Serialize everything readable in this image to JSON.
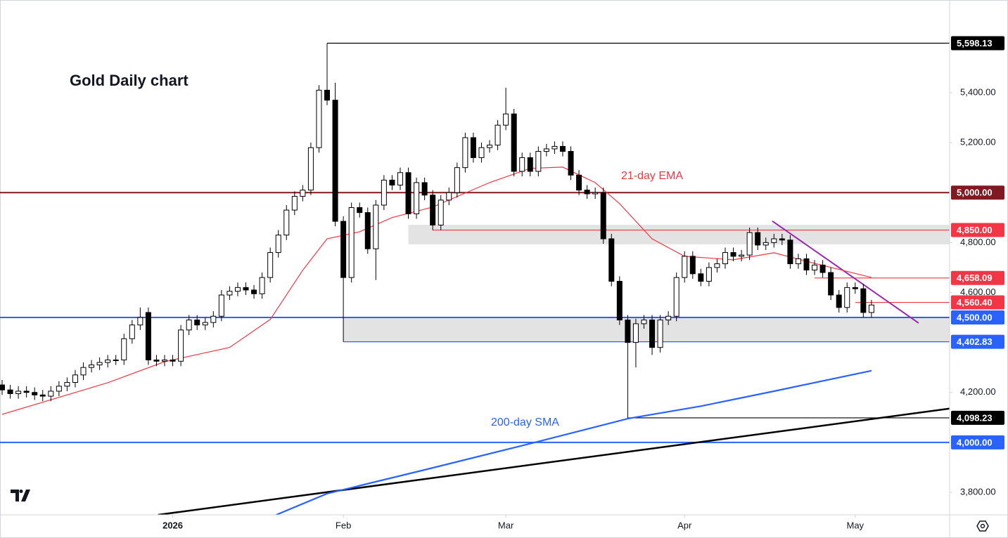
{
  "chart_data": {
    "type": "candlestick",
    "title": "Gold Daily chart",
    "xlim": [
      -0.26,
      116.62
    ],
    "ylim": [
      3710,
      5771
    ],
    "xticks": [
      {
        "value": 21,
        "label": "2026"
      },
      {
        "value": 42,
        "label": "Feb"
      },
      {
        "value": 62,
        "label": "Mar"
      },
      {
        "value": 84,
        "label": "Apr"
      },
      {
        "value": 105,
        "label": "May"
      }
    ],
    "yticks": [
      {
        "value": 3800,
        "label": "3,800.00"
      },
      {
        "value": 4200,
        "label": "4,200.00"
      },
      {
        "value": 4600,
        "label": "4,600.00"
      },
      {
        "value": 4800,
        "label": "4,800.00"
      },
      {
        "value": 5200,
        "label": "5,200.00"
      },
      {
        "value": 5400,
        "label": "5,400.00"
      }
    ],
    "up_color": "#ffffff",
    "down_color": "#000000",
    "x": [
      0,
      1,
      2,
      3,
      4,
      5,
      6,
      7,
      8,
      9,
      10,
      11,
      12,
      13,
      14,
      15,
      16,
      17,
      18,
      19,
      20,
      21,
      22,
      23,
      24,
      25,
      26,
      27,
      28,
      29,
      30,
      31,
      32,
      33,
      34,
      35,
      36,
      37,
      38,
      39,
      40,
      41,
      42,
      43,
      44,
      45,
      46,
      47,
      48,
      49,
      50,
      51,
      52,
      53,
      54,
      55,
      56,
      57,
      58,
      59,
      60,
      61,
      62,
      63,
      64,
      65,
      66,
      67,
      68,
      69,
      70,
      71,
      72,
      73,
      74,
      75,
      76,
      77,
      78,
      79,
      80,
      81,
      82,
      83,
      84,
      85,
      86,
      87,
      88,
      89,
      90,
      91,
      92,
      93,
      94,
      95,
      96,
      97,
      98,
      99,
      100,
      101,
      102,
      103,
      104,
      105,
      106,
      107
    ],
    "open": [
      4230,
      4210,
      4195,
      4205,
      4200,
      4190,
      4185,
      4205,
      4225,
      4240,
      4270,
      4300,
      4310,
      4320,
      4330,
      4330,
      4415,
      4470,
      4520,
      4330,
      4325,
      4330,
      4325,
      4450,
      4490,
      4470,
      4480,
      4505,
      4590,
      4605,
      4620,
      4610,
      4595,
      4660,
      4760,
      4830,
      4930,
      4985,
      5010,
      5180,
      5410,
      5370,
      4885,
      4660,
      4940,
      4920,
      4775,
      4950,
      5050,
      5030,
      5080,
      4915,
      5040,
      4990,
      4870,
      4970,
      5000,
      5100,
      5220,
      5140,
      5180,
      5190,
      5270,
      5315,
      5085,
      5140,
      5085,
      5165,
      5175,
      5185,
      5165,
      5070,
      5010,
      4995,
      5000,
      4815,
      4645,
      4490,
      4400,
      4475,
      4490,
      4380,
      4490,
      4505,
      4660,
      4745,
      4675,
      4645,
      4700,
      4715,
      4760,
      4745,
      4750,
      4840,
      4790,
      4800,
      4815,
      4810,
      4715,
      4735,
      4690,
      4710,
      4680,
      4590,
      4540,
      4620,
      4615,
      4520
    ],
    "high": [
      4250,
      4230,
      4225,
      4225,
      4220,
      4210,
      4225,
      4245,
      4260,
      4290,
      4320,
      4330,
      4340,
      4350,
      4350,
      4435,
      4490,
      4540,
      4540,
      4350,
      4350,
      4350,
      4470,
      4510,
      4510,
      4500,
      4525,
      4610,
      4625,
      4640,
      4640,
      4630,
      4680,
      4780,
      4850,
      4950,
      5005,
      5030,
      5200,
      5430,
      5598.13,
      5440,
      4905,
      4960,
      4960,
      4940,
      4970,
      5070,
      5070,
      5100,
      5100,
      5060,
      5060,
      5010,
      4990,
      5020,
      5120,
      5240,
      5240,
      5200,
      5210,
      5290,
      5420,
      5335,
      5160,
      5160,
      5185,
      5195,
      5205,
      5205,
      5185,
      5090,
      5030,
      5020,
      5020,
      4835,
      4665,
      4510,
      4495,
      4510,
      4510,
      4510,
      4525,
      4680,
      4765,
      4765,
      4695,
      4720,
      4735,
      4780,
      4780,
      4770,
      4860,
      4860,
      4820,
      4835,
      4835,
      4830,
      4755,
      4755,
      4730,
      4730,
      4700,
      4610,
      4640,
      4640,
      4635,
      4570
    ],
    "low": [
      4190,
      4175,
      4175,
      4180,
      4170,
      4165,
      4165,
      4185,
      4205,
      4220,
      4250,
      4280,
      4290,
      4300,
      4310,
      4310,
      4395,
      4450,
      4310,
      4305,
      4305,
      4305,
      4305,
      4430,
      4450,
      4450,
      4460,
      4485,
      4570,
      4585,
      4590,
      4575,
      4575,
      4640,
      4740,
      4810,
      4910,
      4965,
      4990,
      5160,
      5350,
      4865,
      4402.83,
      4640,
      4900,
      4755,
      4650,
      4930,
      5010,
      5010,
      4895,
      4895,
      4970,
      4850,
      4850,
      4950,
      4980,
      5080,
      5120,
      5120,
      5160,
      5170,
      5250,
      5065,
      5065,
      5065,
      5065,
      5145,
      5155,
      5145,
      5050,
      4990,
      4975,
      4975,
      4795,
      4625,
      4470,
      4098.23,
      4300,
      4455,
      4350,
      4360,
      4470,
      4485,
      4640,
      4655,
      4625,
      4625,
      4680,
      4695,
      4725,
      4725,
      4730,
      4770,
      4770,
      4780,
      4790,
      4695,
      4695,
      4670,
      4670,
      4660,
      4570,
      4520,
      4520,
      4595,
      4500,
      4500
    ],
    "close": [
      4210,
      4195,
      4205,
      4200,
      4190,
      4185,
      4205,
      4225,
      4240,
      4270,
      4300,
      4310,
      4320,
      4330,
      4330,
      4415,
      4470,
      4500,
      4330,
      4325,
      4330,
      4325,
      4450,
      4490,
      4470,
      4480,
      4505,
      4590,
      4605,
      4620,
      4610,
      4595,
      4660,
      4760,
      4830,
      4930,
      4985,
      5010,
      5180,
      5410,
      5370,
      4885,
      4660,
      4940,
      4920,
      4775,
      4950,
      5050,
      5030,
      5080,
      4915,
      5040,
      4990,
      4870,
      4970,
      5000,
      5100,
      5220,
      5140,
      5180,
      5190,
      5270,
      5315,
      5085,
      5140,
      5085,
      5165,
      5175,
      5185,
      5165,
      5070,
      5010,
      4995,
      5000,
      4815,
      4645,
      4490,
      4400,
      4475,
      4490,
      4380,
      4490,
      4505,
      4660,
      4745,
      4675,
      4645,
      4700,
      4715,
      4760,
      4745,
      4750,
      4840,
      4790,
      4800,
      4815,
      4810,
      4715,
      4735,
      4690,
      4710,
      4680,
      4590,
      4540,
      4620,
      4615,
      4520,
      4550
    ],
    "series": [
      {
        "name": "21-day EMA",
        "color": "#f23645",
        "x": [
          0,
          13,
          20,
          28,
          33,
          37,
          40,
          44,
          48,
          53,
          60,
          65,
          69,
          73,
          76,
          80,
          84,
          90,
          95,
          100,
          107
        ],
        "values": [
          4112,
          4239,
          4323,
          4380,
          4492,
          4689,
          4815,
          4843,
          4900,
          4942,
          5040,
          5097,
          5102,
          5040,
          4956,
          4815,
          4745,
          4731,
          4759,
          4717,
          4660
        ]
      },
      {
        "name": "200-day SMA",
        "color": "#2962ff",
        "x": [
          33,
          40,
          52,
          65,
          77,
          86,
          95,
          107
        ],
        "values": [
          3700,
          3795,
          3890,
          3995,
          4095,
          4145,
          4205,
          4287
        ]
      }
    ],
    "trendlines": [
      {
        "color": "#000000",
        "x": [
          19.2,
          116.6
        ],
        "values": [
          3710,
          4135
        ]
      },
      {
        "color": "#9c27b0",
        "x": [
          94.8,
          112.8
        ],
        "values": [
          4886,
          4478
        ]
      }
    ],
    "zones": [
      {
        "color": "#dcdcdc",
        "start": 50,
        "low": 4793,
        "high": 4871
      },
      {
        "color": "#dcdcdc",
        "start": 42,
        "low": 4402.83,
        "high": 4500
      }
    ],
    "levels": [
      {
        "value": 5598.13,
        "label": "5,598.13",
        "color": "#000000",
        "start": 40
      },
      {
        "value": 5000,
        "label": "5,000.00",
        "color": "#801922"
      },
      {
        "value": 4850,
        "label": "4,850.00",
        "color": "#f23645",
        "start": 53
      },
      {
        "value": 4658.09,
        "label": "4,658.09",
        "color": "#f23645",
        "start": 100
      },
      {
        "value": 4560.4,
        "label": "4,560.40",
        "color": "#f23645",
        "start": 105
      },
      {
        "value": 4500,
        "label": "4,500.00",
        "color": "#2962ff"
      },
      {
        "value": 4402.83,
        "label": "4,402.83",
        "color": "#2962ff",
        "start": 42
      },
      {
        "value": 4098.23,
        "label": "4,098.23",
        "color": "#000000",
        "start": 77
      },
      {
        "value": 4000,
        "label": "4,000.00",
        "color": "#2962ff"
      }
    ]
  }
}
